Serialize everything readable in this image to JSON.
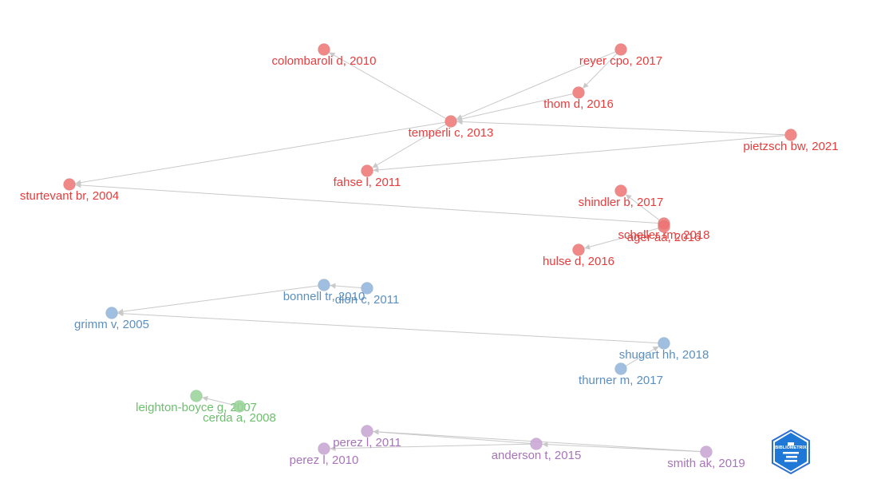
{
  "graph": {
    "clusters": [
      {
        "id": "red",
        "color": "#ef7373",
        "label_color": "#e53d3d"
      },
      {
        "id": "blue",
        "color": "#8fb3d9",
        "label_color": "#5b8fbf"
      },
      {
        "id": "green",
        "color": "#96d296",
        "label_color": "#6cbf6c"
      },
      {
        "id": "purple",
        "color": "#c7a2d2",
        "label_color": "#a874ba"
      }
    ],
    "nodes": [
      {
        "id": "colombaroli",
        "label": "colombaroli d, 2010",
        "cluster": "red"
      },
      {
        "id": "reyer",
        "label": "reyer cpo, 2017",
        "cluster": "red"
      },
      {
        "id": "thom",
        "label": "thom d, 2016",
        "cluster": "red"
      },
      {
        "id": "temperli",
        "label": "temperli c, 2013",
        "cluster": "red"
      },
      {
        "id": "pietzsch",
        "label": "pietzsch bw, 2021",
        "cluster": "red"
      },
      {
        "id": "fahse",
        "label": "fahse l, 2011",
        "cluster": "red"
      },
      {
        "id": "sturtevant",
        "label": "sturtevant br, 2004",
        "cluster": "red"
      },
      {
        "id": "shindler",
        "label": "shindler b, 2017",
        "cluster": "red"
      },
      {
        "id": "scheller",
        "label": "scheller rm, 2018",
        "cluster": "red"
      },
      {
        "id": "ager",
        "label": "ager aa, 2016",
        "cluster": "red"
      },
      {
        "id": "hulse",
        "label": "hulse d, 2016",
        "cluster": "red"
      },
      {
        "id": "bonnell",
        "label": "bonnell tr, 2010",
        "cluster": "blue"
      },
      {
        "id": "dion",
        "label": "dion c, 2011",
        "cluster": "blue"
      },
      {
        "id": "grimm",
        "label": "grimm v, 2005",
        "cluster": "blue"
      },
      {
        "id": "shugart",
        "label": "shugart hh, 2018",
        "cluster": "blue"
      },
      {
        "id": "thurner",
        "label": "thurner m, 2017",
        "cluster": "blue"
      },
      {
        "id": "leighton",
        "label": "leighton-boyce g, 2007",
        "cluster": "green"
      },
      {
        "id": "cerda",
        "label": "cerda a, 2008",
        "cluster": "green"
      },
      {
        "id": "perez2011",
        "label": "perez l, 2011",
        "cluster": "purple"
      },
      {
        "id": "perez2010",
        "label": "perez l, 2010",
        "cluster": "purple"
      },
      {
        "id": "anderson",
        "label": "anderson t, 2015",
        "cluster": "purple"
      },
      {
        "id": "smith",
        "label": "smith ak, 2019",
        "cluster": "purple"
      }
    ],
    "edges": [
      [
        "temperli",
        "colombaroli"
      ],
      [
        "reyer",
        "temperli"
      ],
      [
        "reyer",
        "thom"
      ],
      [
        "thom",
        "temperli"
      ],
      [
        "pietzsch",
        "temperli"
      ],
      [
        "pietzsch",
        "fahse"
      ],
      [
        "temperli",
        "fahse"
      ],
      [
        "temperli",
        "sturtevant"
      ],
      [
        "scheller",
        "sturtevant"
      ],
      [
        "scheller",
        "shindler"
      ],
      [
        "ager",
        "hulse"
      ],
      [
        "dion",
        "bonnell"
      ],
      [
        "bonnell",
        "grimm"
      ],
      [
        "shugart",
        "grimm"
      ],
      [
        "thurner",
        "shugart"
      ],
      [
        "cerda",
        "leighton"
      ],
      [
        "anderson",
        "perez2011"
      ],
      [
        "anderson",
        "perez2010"
      ],
      [
        "smith",
        "anderson"
      ],
      [
        "smith",
        "perez2011"
      ]
    ]
  },
  "logo": {
    "icon": "bibliometrix-logo",
    "text": "BIBLIOMETRIX"
  }
}
